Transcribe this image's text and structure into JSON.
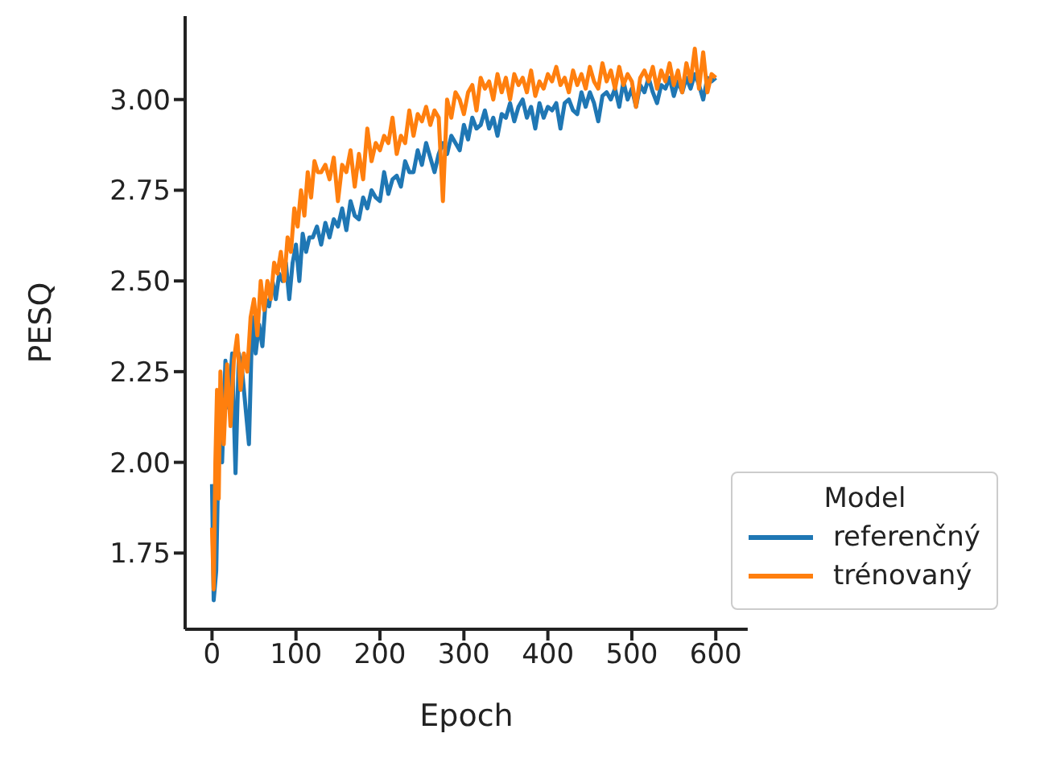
{
  "chart_data": {
    "type": "line",
    "xlabel": "Epoch",
    "ylabel": "PESQ",
    "legend_title": "Model",
    "legend": "bottom right",
    "grid": false,
    "marker": "none",
    "line_style": "solid",
    "xlim": [
      -32,
      638
    ],
    "xticks": [
      0,
      100,
      200,
      300,
      400,
      500,
      600
    ],
    "ylim": [
      1.54,
      3.23
    ],
    "yticks": [
      {
        "value": 1.75,
        "label": "1.75"
      },
      {
        "value": 2,
        "label": "2.00"
      },
      {
        "value": 2.25,
        "label": "2.25"
      },
      {
        "value": 2.5,
        "label": "2.50"
      },
      {
        "value": 2.75,
        "label": "2.75"
      },
      {
        "value": 3,
        "label": "3.00"
      }
    ],
    "series": [
      {
        "name": "referenčný",
        "color": "#1f77b4",
        "x": [
          0,
          2,
          5,
          8,
          12,
          16,
          20,
          24,
          28,
          32,
          36,
          40,
          44,
          48,
          52,
          56,
          60,
          64,
          68,
          72,
          76,
          80,
          84,
          88,
          92,
          96,
          100,
          104,
          108,
          112,
          116,
          120,
          125,
          130,
          135,
          140,
          145,
          150,
          155,
          160,
          165,
          170,
          175,
          180,
          185,
          190,
          195,
          200,
          205,
          210,
          215,
          220,
          225,
          230,
          235,
          240,
          245,
          250,
          255,
          260,
          265,
          270,
          275,
          280,
          285,
          290,
          295,
          300,
          305,
          310,
          315,
          320,
          325,
          330,
          335,
          340,
          345,
          350,
          355,
          360,
          365,
          370,
          375,
          380,
          385,
          390,
          395,
          400,
          405,
          410,
          415,
          420,
          425,
          430,
          435,
          440,
          445,
          450,
          455,
          460,
          465,
          470,
          475,
          480,
          485,
          490,
          495,
          500,
          505,
          510,
          515,
          520,
          525,
          530,
          535,
          540,
          545,
          550,
          555,
          560,
          565,
          570,
          575,
          580,
          585,
          590,
          595,
          600
        ],
        "values": [
          1.94,
          1.62,
          1.7,
          2.05,
          2.0,
          2.28,
          2.15,
          2.3,
          1.97,
          2.3,
          2.25,
          2.15,
          2.05,
          2.4,
          2.3,
          2.38,
          2.32,
          2.45,
          2.43,
          2.5,
          2.45,
          2.52,
          2.5,
          2.55,
          2.45,
          2.55,
          2.6,
          2.5,
          2.63,
          2.58,
          2.62,
          2.62,
          2.65,
          2.6,
          2.66,
          2.62,
          2.67,
          2.65,
          2.7,
          2.64,
          2.72,
          2.68,
          2.67,
          2.73,
          2.7,
          2.75,
          2.73,
          2.72,
          2.8,
          2.74,
          2.78,
          2.79,
          2.76,
          2.83,
          2.8,
          2.8,
          2.86,
          2.82,
          2.88,
          2.84,
          2.8,
          2.85,
          2.88,
          2.85,
          2.9,
          2.88,
          2.86,
          2.93,
          2.89,
          2.95,
          2.92,
          2.93,
          2.97,
          2.92,
          2.95,
          2.9,
          2.96,
          2.95,
          2.99,
          2.94,
          2.98,
          3.0,
          2.95,
          2.98,
          2.92,
          2.99,
          2.95,
          2.98,
          2.97,
          2.99,
          2.92,
          2.99,
          3.0,
          2.97,
          2.96,
          3.02,
          2.98,
          3.02,
          2.99,
          2.94,
          3.01,
          3.02,
          3.0,
          3.03,
          2.98,
          3.05,
          3.0,
          3.03,
          2.98,
          3.04,
          3.02,
          3.06,
          3.02,
          2.99,
          3.04,
          3.03,
          3.06,
          3.01,
          3.05,
          3.02,
          3.06,
          3.03,
          3.07,
          3.04,
          3.0,
          3.06,
          3.05,
          3.06
        ]
      },
      {
        "name": "trénovaný",
        "color": "#ff7f0e",
        "x": [
          0,
          2,
          4,
          6,
          8,
          10,
          14,
          18,
          22,
          26,
          30,
          34,
          38,
          42,
          46,
          50,
          54,
          58,
          62,
          66,
          70,
          74,
          78,
          82,
          86,
          90,
          94,
          98,
          102,
          106,
          110,
          114,
          118,
          122,
          126,
          130,
          135,
          140,
          145,
          150,
          155,
          160,
          165,
          170,
          175,
          180,
          185,
          190,
          195,
          200,
          205,
          210,
          215,
          220,
          225,
          230,
          235,
          240,
          245,
          250,
          255,
          260,
          265,
          270,
          275,
          280,
          285,
          290,
          295,
          300,
          305,
          310,
          315,
          320,
          325,
          330,
          335,
          340,
          345,
          350,
          355,
          360,
          365,
          370,
          375,
          380,
          385,
          390,
          395,
          400,
          405,
          410,
          415,
          420,
          425,
          430,
          435,
          440,
          445,
          450,
          455,
          460,
          465,
          470,
          475,
          480,
          485,
          490,
          495,
          500,
          505,
          510,
          515,
          520,
          525,
          530,
          535,
          540,
          545,
          550,
          555,
          560,
          565,
          570,
          575,
          580,
          585,
          590,
          595,
          600
        ],
        "values": [
          1.82,
          1.65,
          2.0,
          2.2,
          1.9,
          2.25,
          2.05,
          2.27,
          2.1,
          2.28,
          2.35,
          2.2,
          2.3,
          2.25,
          2.4,
          2.45,
          2.35,
          2.5,
          2.42,
          2.5,
          2.45,
          2.55,
          2.52,
          2.58,
          2.5,
          2.62,
          2.58,
          2.7,
          2.65,
          2.75,
          2.68,
          2.8,
          2.73,
          2.83,
          2.8,
          2.8,
          2.82,
          2.78,
          2.84,
          2.72,
          2.82,
          2.8,
          2.86,
          2.76,
          2.85,
          2.78,
          2.92,
          2.83,
          2.88,
          2.86,
          2.9,
          2.88,
          2.95,
          2.85,
          2.9,
          2.88,
          2.97,
          2.9,
          2.96,
          2.94,
          2.98,
          2.93,
          2.97,
          2.95,
          2.72,
          3.0,
          2.95,
          3.02,
          3.0,
          2.96,
          3.02,
          3.04,
          2.97,
          3.06,
          3.03,
          3.05,
          3.0,
          3.07,
          3.02,
          3.06,
          3.0,
          3.07,
          3.04,
          3.06,
          3.02,
          3.08,
          3.01,
          3.05,
          3.03,
          3.07,
          3.05,
          3.09,
          3.04,
          3.06,
          3.02,
          3.08,
          3.04,
          3.07,
          3.03,
          3.09,
          3.05,
          3.03,
          3.1,
          3.05,
          3.08,
          3.03,
          3.09,
          3.04,
          3.07,
          3.05,
          2.98,
          3.06,
          3.08,
          3.05,
          3.09,
          3.03,
          3.08,
          3.05,
          3.1,
          3.04,
          3.08,
          3.02,
          3.1,
          3.05,
          3.14,
          3.03,
          3.13,
          3.02,
          3.07,
          3.06
        ]
      }
    ]
  }
}
